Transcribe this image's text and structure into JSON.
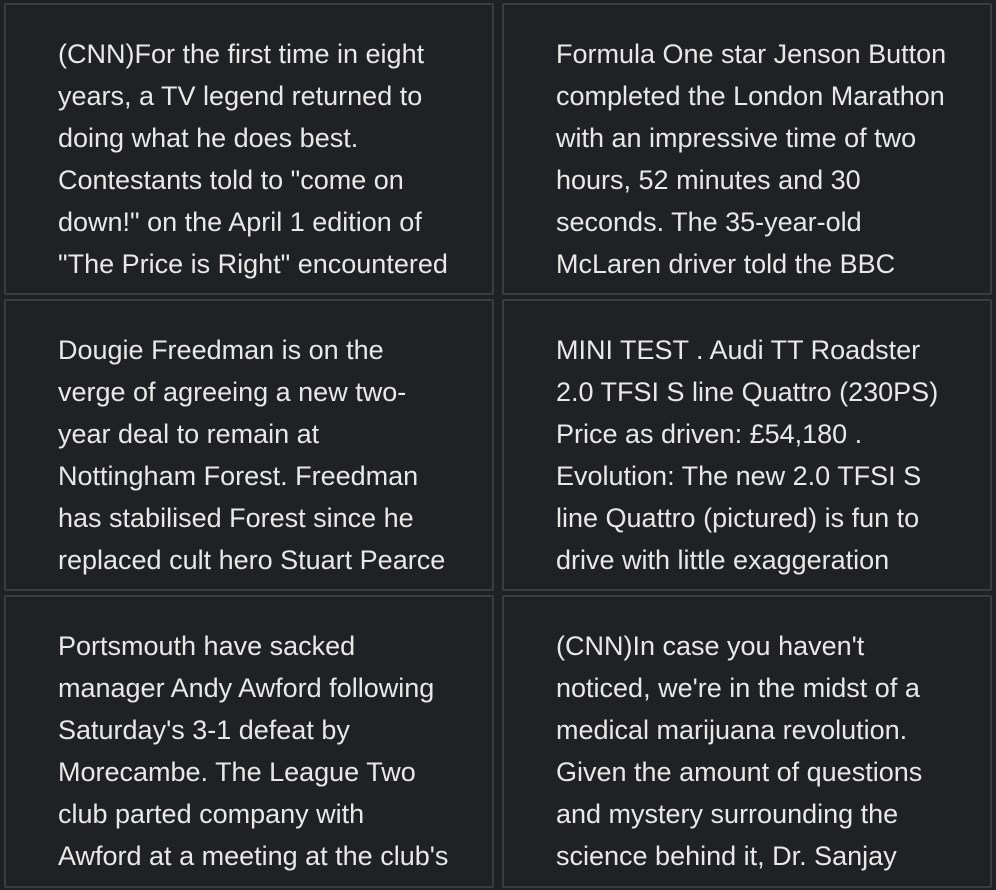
{
  "cards": [
    {
      "text": "(CNN)For the first time in eight years, a TV legend returned to doing what he does best. Contestants told to \"come on down!\" on the April 1 edition of \"The Price is Right\" encountered not"
    },
    {
      "text": "Formula One star Jenson Button completed the London Marathon with an impressive time of two hours, 52 minutes and 30 seconds. The 35-year-old McLaren driver told the BBC"
    },
    {
      "text": "Dougie Freedman is on the verge of agreeing a new two-year deal to remain at Nottingham Forest. Freedman has stabilised Forest since he replaced cult hero Stuart Pearce and"
    },
    {
      "text": "MINI TEST . Audi TT Roadster 2.0 TFSI S line Quattro (230PS) Price as driven: £54,180 . Evolution: The new 2.0 TFSI S line Quattro (pictured) is fun to drive with little exaggeration"
    },
    {
      "text": "Portsmouth have sacked manager Andy Awford following Saturday's 3-1 defeat by Morecambe. The League Two club parted company with Awford at a meeting at the club's Roko"
    },
    {
      "text": "(CNN)In case you haven't noticed, we're in the midst of a medical marijuana revolution. Given the amount of questions and mystery surrounding the science behind it, Dr. Sanjay"
    }
  ]
}
